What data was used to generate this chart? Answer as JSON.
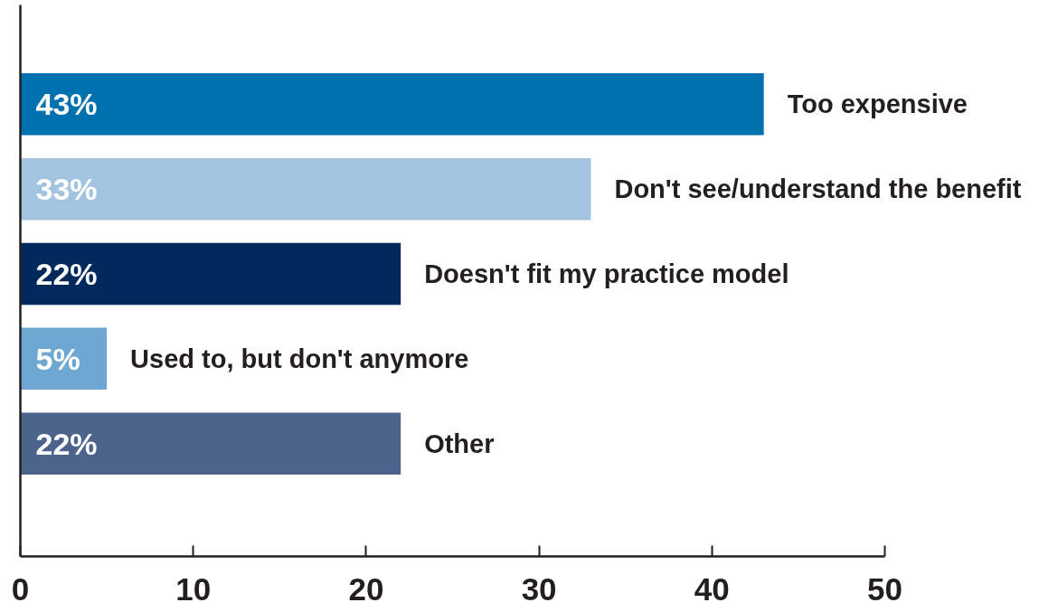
{
  "chart_data": {
    "type": "bar",
    "orientation": "horizontal",
    "categories": [
      "Too expensive",
      "Don't see/understand the benefit",
      "Doesn't fit my practice model",
      "Used to, but don't anymore",
      "Other"
    ],
    "values": [
      43,
      33,
      22,
      5,
      22
    ],
    "colors": [
      "#0070af",
      "#a3c4e1",
      "#00295c",
      "#6ea7d1",
      "#4b638d"
    ],
    "value_labels": [
      "43%",
      "33%",
      "22%",
      "5%",
      "22%"
    ],
    "xlim": [
      0,
      50
    ],
    "xticks": [
      0,
      10,
      20,
      30,
      40,
      50
    ],
    "grid": false
  }
}
